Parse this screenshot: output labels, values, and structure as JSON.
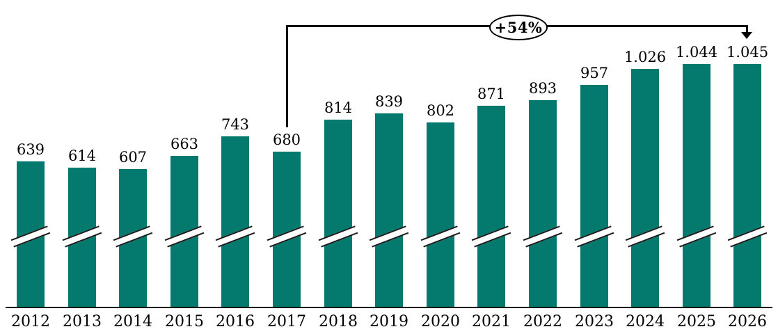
{
  "chart_data": {
    "type": "bar",
    "title": "",
    "xlabel": "",
    "ylabel": "",
    "categories": [
      "2012",
      "2013",
      "2014",
      "2015",
      "2016",
      "2017",
      "2018",
      "2019",
      "2020",
      "2021",
      "2022",
      "2023",
      "2024",
      "2025",
      "2026"
    ],
    "values": [
      639,
      614,
      607,
      663,
      743,
      680,
      814,
      839,
      802,
      871,
      893,
      957,
      1026,
      1044,
      1045
    ],
    "value_labels": [
      "639",
      "614",
      "607",
      "663",
      "743",
      "680",
      "814",
      "839",
      "802",
      "871",
      "893",
      "957",
      "1.026",
      "1.044",
      "1.045"
    ],
    "ylim": [
      0,
      1100
    ],
    "grid": false,
    "legend": "none",
    "axis_break": true,
    "bar_color": "#047A6F",
    "text_color": "#000000",
    "line_color": "#000000",
    "annotation": {
      "label": "+54%",
      "from_category": "2017",
      "to_category": "2026"
    }
  }
}
